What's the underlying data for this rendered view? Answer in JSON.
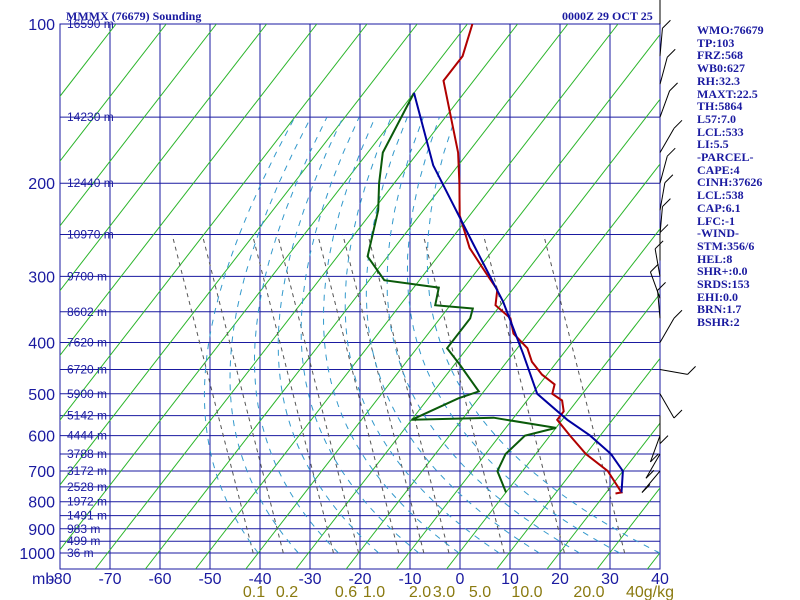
{
  "header": {
    "station": "MMMX (76679) Sounding",
    "time": "0000Z 29 OCT 25"
  },
  "indices": [
    "WMO:76679",
    "TP:103",
    "FRZ:568",
    "WB0:627",
    "RH:32.3",
    "MAXT:22.5",
    "TH:5864",
    "L57:7.0",
    "LCL:533",
    "LI:5.5",
    "-PARCEL-",
    "CAPE:4",
    "CINH:37626",
    "LCL:538",
    "CAP:6.1",
    "LFC:-1",
    "-WIND-",
    "STM:356/6",
    "HEL:8",
    "SHR+:0.0",
    "SRDS:153",
    "EHI:0.0",
    "BRN:1.7",
    "BSHR:2"
  ],
  "colors": {
    "grid": "#1a1aa0",
    "isotherm": "#2bb52b",
    "temperature": "#b00000",
    "dewpoint": "#0a5a0a",
    "parcel": "#0000a0",
    "mixing_ratio": "#555555",
    "moist_adiabat": "#3399cc"
  },
  "chart_data": {
    "type": "line",
    "title": "MMMX (76679) Sounding",
    "ylabel_unit": "mb",
    "pressure_levels": [
      100,
      200,
      300,
      400,
      500,
      600,
      700,
      800,
      900,
      1000
    ],
    "temperature_ticks": [
      -80,
      -70,
      -60,
      -50,
      -40,
      -30,
      -20,
      -10,
      0,
      10,
      20,
      30,
      40
    ],
    "height_labels": [
      "16590 m",
      "14230 m",
      "12440 m",
      "10970 m",
      "9700 m",
      "8602 m",
      "7620 m",
      "6720 m",
      "5900 m",
      "5142 m",
      "4444 m",
      "3788 m",
      "3172 m",
      "2528 m",
      "1972 m",
      "1491 m",
      "983 m",
      "499 m",
      "36 m"
    ],
    "mixing_ratio_labels": [
      "0.1",
      "0.2",
      "0.6",
      "1.0",
      "2.0",
      "3.0",
      "5.0",
      "10.0",
      "20.0",
      "40g/kg"
    ],
    "series": [
      {
        "role": "temperature",
        "points": [
          [
            -79,
            100
          ],
          [
            -76,
            115
          ],
          [
            -76,
            128
          ],
          [
            -62,
            175
          ],
          [
            -57,
            200
          ],
          [
            -52,
            230
          ],
          [
            -45,
            265
          ],
          [
            -38,
            295
          ],
          [
            -33,
            318
          ],
          [
            -31,
            340
          ],
          [
            -26,
            360
          ],
          [
            -23,
            385
          ],
          [
            -18,
            410
          ],
          [
            -15,
            435
          ],
          [
            -11,
            460
          ],
          [
            -7,
            480
          ],
          [
            -6,
            500
          ],
          [
            -3,
            515
          ],
          [
            -1,
            540
          ],
          [
            -1,
            560
          ],
          [
            4,
            600
          ],
          [
            10,
            650
          ],
          [
            17,
            700
          ],
          [
            23,
            768
          ],
          [
            22,
            772
          ]
        ]
      },
      {
        "role": "dewpoint",
        "points": [
          [
            -80,
            135
          ],
          [
            -77,
            175
          ],
          [
            -73,
            200
          ],
          [
            -69,
            225
          ],
          [
            -64,
            275
          ],
          [
            -57,
            305
          ],
          [
            -45,
            315
          ],
          [
            -43,
            340
          ],
          [
            -35,
            345
          ],
          [
            -34,
            360
          ],
          [
            -34,
            410
          ],
          [
            -29,
            440
          ],
          [
            -21,
            495
          ],
          [
            -24,
            510
          ],
          [
            -30,
            560
          ],
          [
            -14,
            555
          ],
          [
            0,
            580
          ],
          [
            -5,
            600
          ],
          [
            -6,
            650
          ],
          [
            -5,
            700
          ],
          [
            0,
            768
          ]
        ]
      },
      {
        "role": "parcel",
        "points": [
          [
            -80,
            135
          ],
          [
            -65,
            185
          ],
          [
            -45,
            260
          ],
          [
            -30,
            335
          ],
          [
            -18,
            420
          ],
          [
            -9,
            500
          ],
          [
            1,
            560
          ],
          [
            8,
            600
          ],
          [
            15,
            650
          ],
          [
            20,
            700
          ],
          [
            23,
            768
          ]
        ]
      }
    ],
    "wind_barbs": [
      [
        100,
        0
      ],
      [
        115,
        5
      ],
      [
        130,
        15
      ],
      [
        150,
        20
      ],
      [
        175,
        30
      ],
      [
        200,
        15
      ],
      [
        225,
        10
      ],
      [
        250,
        5
      ],
      [
        280,
        0
      ],
      [
        300,
        350
      ],
      [
        330,
        340
      ],
      [
        360,
        355
      ],
      [
        400,
        30
      ],
      [
        450,
        100
      ],
      [
        500,
        150
      ],
      [
        550,
        180
      ],
      [
        600,
        200
      ],
      [
        650,
        210
      ],
      [
        700,
        220
      ]
    ]
  }
}
